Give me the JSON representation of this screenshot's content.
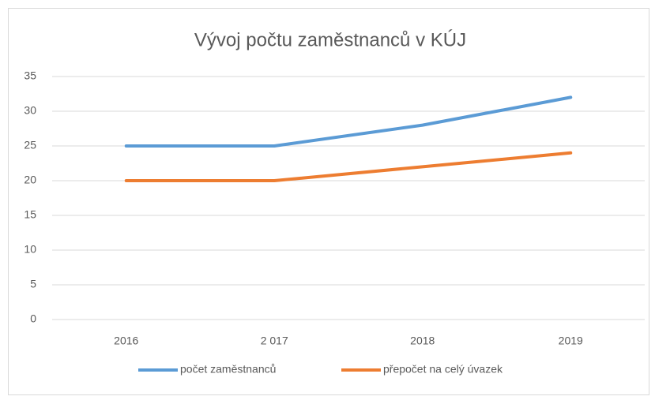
{
  "chart_data": {
    "type": "line",
    "title": "Vývoj počtu zaměstnanců v KÚJ",
    "categories": [
      "2016",
      "2 017",
      "2018",
      "2019"
    ],
    "series": [
      {
        "name": "počet zaměstnanců",
        "color": "#5b9bd5",
        "values": [
          25,
          25,
          28,
          32
        ]
      },
      {
        "name": "přepočet na celý úvazek",
        "color": "#ed7d31",
        "values": [
          20,
          20,
          22,
          24
        ]
      }
    ],
    "ylim": [
      0,
      35
    ],
    "yticks": [
      0,
      5,
      10,
      15,
      20,
      25,
      30,
      35
    ],
    "grid": true,
    "legend": "bottom"
  }
}
